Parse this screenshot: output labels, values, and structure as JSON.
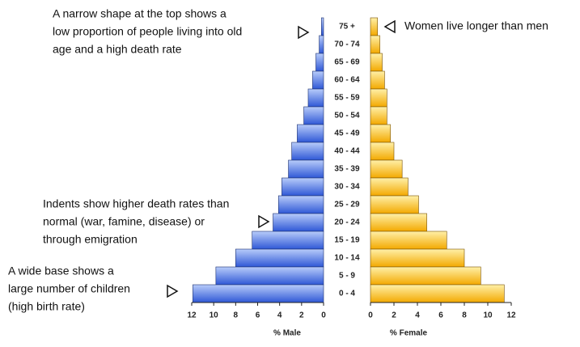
{
  "chart_data": {
    "type": "population-pyramid",
    "categories": [
      "75 +",
      "70 - 74",
      "65 - 69",
      "60 - 64",
      "55 - 59",
      "50 - 54",
      "45 - 49",
      "40 - 44",
      "35 - 39",
      "30 - 34",
      "25 - 29",
      "20 - 24",
      "15 - 19",
      "10 - 14",
      "5 - 9",
      "0 - 4"
    ],
    "series": [
      {
        "name": "% Male",
        "color": "#2f58d6",
        "values": [
          0.2,
          0.4,
          0.7,
          1.0,
          1.4,
          1.8,
          2.4,
          2.9,
          3.2,
          3.8,
          4.1,
          4.6,
          6.5,
          8.0,
          9.8,
          11.9
        ]
      },
      {
        "name": "% Female",
        "color": "#f3a900",
        "values": [
          0.6,
          0.8,
          1.0,
          1.2,
          1.4,
          1.4,
          1.7,
          2.0,
          2.7,
          3.2,
          4.1,
          4.8,
          6.5,
          8.0,
          9.4,
          11.4
        ]
      }
    ],
    "xlim": [
      0,
      12
    ],
    "xticks": [
      0,
      2,
      4,
      6,
      8,
      10,
      12
    ],
    "annotations": [
      {
        "lines": [
          "A narrow shape at the top shows a",
          "low proportion of people living into old",
          "age and a high death rate"
        ]
      },
      {
        "lines": [
          "Indents show higher death rates than",
          "normal (war, famine, disease) or",
          "through emigration"
        ]
      },
      {
        "lines": [
          "A wide base shows a",
          "large number of children",
          "(high birth rate)"
        ]
      },
      {
        "lines": [
          "Women live longer than men"
        ]
      }
    ]
  }
}
